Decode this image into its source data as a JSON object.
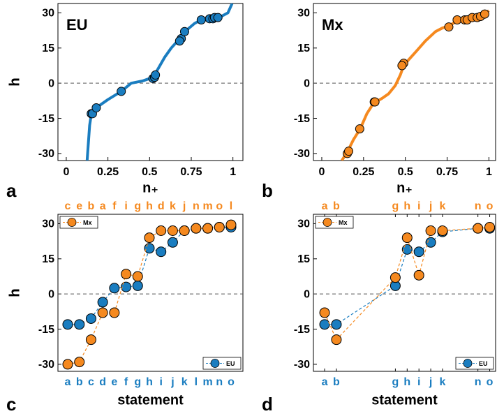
{
  "chart_data": [
    {
      "type": "curve_scatter",
      "label": "a",
      "title": "EU",
      "xlabel": "n₊",
      "ylabel": "h",
      "xlim": [
        -0.05,
        1.06
      ],
      "ylim": [
        -33,
        34
      ],
      "xticks": [
        0,
        0.25,
        0.5,
        0.75,
        1
      ],
      "yticks": [
        -30,
        -15,
        0,
        15,
        30
      ],
      "zero_line": true,
      "color": "#1a7dc0",
      "curve": {
        "x": [
          0.125,
          0.14,
          0.15,
          0.18,
          0.25,
          0.33,
          0.39,
          0.46,
          0.52,
          0.55,
          0.59,
          0.63,
          0.68,
          0.72,
          0.77,
          0.81,
          0.88,
          0.93,
          0.97,
          0.995
        ],
        "values": [
          -33,
          -18,
          -13.5,
          -10.5,
          -7,
          -3.5,
          0,
          1,
          2.5,
          6,
          11,
          15,
          19,
          22.5,
          25.5,
          27,
          27.6,
          28.5,
          30,
          34
        ]
      },
      "points": {
        "x": [
          0.15,
          0.157,
          0.18,
          0.33,
          0.52,
          0.53,
          0.535,
          0.69,
          0.68,
          0.71,
          0.81,
          0.86,
          0.88,
          0.89,
          0.91
        ],
        "values": [
          -13,
          -13,
          -10.5,
          -3.5,
          2,
          2.5,
          3.5,
          19,
          18,
          22,
          27,
          27.5,
          27.5,
          28,
          28
        ]
      }
    },
    {
      "type": "curve_scatter",
      "label": "b",
      "title": "Mx",
      "xlabel": "n₊",
      "ylabel": "h",
      "xlim": [
        -0.05,
        1.04
      ],
      "ylim": [
        -33,
        34
      ],
      "xticks": [
        0,
        0.25,
        0.5,
        0.75,
        1
      ],
      "yticks": [
        -30,
        -15,
        0,
        15,
        30
      ],
      "zero_line": true,
      "color": "#f5891f",
      "curve": {
        "x": [
          0.12,
          0.155,
          0.19,
          0.23,
          0.27,
          0.31,
          0.36,
          0.4,
          0.44,
          0.47,
          0.49,
          0.52,
          0.57,
          0.62,
          0.68,
          0.72,
          0.76,
          0.81,
          0.87,
          0.93,
          0.975,
          1.0
        ],
        "values": [
          -33,
          -29,
          -24,
          -19.5,
          -13,
          -8.5,
          -6.5,
          -4.5,
          -1,
          3.5,
          7.5,
          10,
          14,
          18,
          22,
          23.5,
          24.5,
          26.5,
          27.5,
          28.5,
          29.5,
          31
        ]
      },
      "points": {
        "x": [
          0.153,
          0.161,
          0.227,
          0.314,
          0.318,
          0.49,
          0.48,
          0.76,
          0.81,
          0.855,
          0.87,
          0.9,
          0.93,
          0.95,
          0.975
        ],
        "values": [
          -30,
          -29,
          -19.5,
          -8,
          -8,
          8.5,
          7.5,
          24,
          27,
          27,
          27,
          28,
          28,
          28.5,
          29.5
        ]
      }
    },
    {
      "type": "category_line",
      "label": "c",
      "xlabel": "statement",
      "ylabel": "h",
      "ylim": [
        -33,
        34
      ],
      "yticks": [
        -30,
        -15,
        0,
        15,
        30
      ],
      "zero_line": true,
      "categories": [
        "a",
        "b",
        "c",
        "d",
        "e",
        "f",
        "g",
        "h",
        "i",
        "j",
        "k",
        "l",
        "m",
        "n",
        "o"
      ],
      "top_categories": [
        "c",
        "e",
        "b",
        "a",
        "f",
        "i",
        "g",
        "h",
        "d",
        "k",
        "j",
        "n",
        "m",
        "o",
        "l"
      ],
      "series": [
        {
          "name": "EU",
          "color": "#1a7dc0",
          "legend": "lower right",
          "values": [
            -13,
            -13,
            -10.5,
            -3.5,
            2.5,
            3,
            3.5,
            19.5,
            18,
            22,
            27,
            28,
            28,
            28.5,
            28.5
          ]
        },
        {
          "name": "Mx",
          "color": "#f5891f",
          "legend": "upper left",
          "values": [
            -30,
            -29,
            -19.5,
            -8,
            -8,
            8.5,
            7.5,
            24,
            27,
            27,
            27,
            28,
            28,
            28.5,
            29.5
          ]
        }
      ]
    },
    {
      "type": "index_line",
      "label": "d",
      "xlabel": "statement",
      "ylabel": "h",
      "xlim": [
        0.05,
        15.5
      ],
      "ylim": [
        -33,
        34
      ],
      "yticks": [
        -30,
        -15,
        0,
        15,
        30
      ],
      "zero_line": true,
      "x": [
        1,
        2,
        7,
        8,
        9,
        10,
        11,
        14,
        15
      ],
      "xticks": [
        {
          "value": 1,
          "label": "a"
        },
        {
          "value": 2,
          "label": "b"
        },
        {
          "value": 7,
          "label": "g"
        },
        {
          "value": 8,
          "label": "h"
        },
        {
          "value": 9,
          "label": "i"
        },
        {
          "value": 10,
          "label": "j"
        },
        {
          "value": 11,
          "label": "k"
        },
        {
          "value": 14,
          "label": "n"
        },
        {
          "value": 15,
          "label": "o"
        }
      ],
      "top_xticks": [
        {
          "value": 1,
          "label": "a"
        },
        {
          "value": 2,
          "label": "b"
        },
        {
          "value": 7,
          "label": "g"
        },
        {
          "value": 8,
          "label": "h"
        },
        {
          "value": 9,
          "label": "i"
        },
        {
          "value": 10,
          "label": "j"
        },
        {
          "value": 11,
          "label": "k"
        },
        {
          "value": 14,
          "label": "n"
        },
        {
          "value": 15,
          "label": "o"
        }
      ],
      "series": [
        {
          "name": "EU",
          "color": "#1a7dc0",
          "legend": "lower right",
          "values": [
            -13,
            -13,
            3.5,
            19,
            18,
            22,
            26.5,
            28,
            28
          ]
        },
        {
          "name": "Mx",
          "color": "#f5891f",
          "legend": "upper left",
          "values": [
            -8,
            -19.5,
            7,
            24,
            8,
            27,
            27,
            28,
            28.5
          ]
        }
      ]
    }
  ]
}
